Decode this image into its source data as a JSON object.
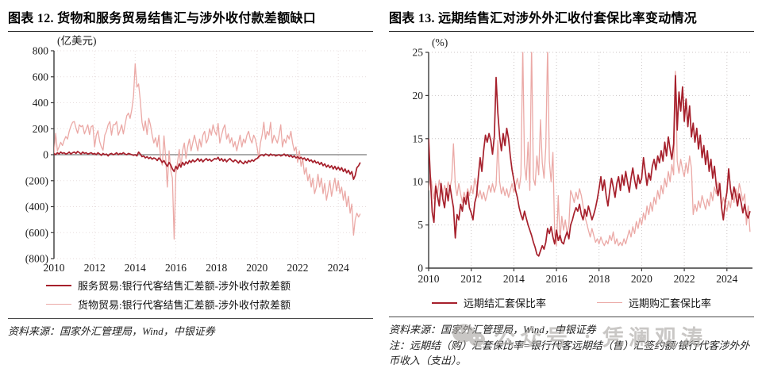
{
  "colors": {
    "dark_red": "#A6202C",
    "light_pink": "#EBA9A6",
    "neg_label_red": "#E8322E",
    "axis": "#3a3a3a",
    "zero_line": "#8f8f8f",
    "watermark_gray": "#a9a6a2"
  },
  "panels": [
    {
      "title": "图表 12. 货物和服务贸易结售汇与涉外收付款差额缺口",
      "legend": [
        {
          "label": "服务贸易:银行代客结售汇差额-涉外收付款差额",
          "color_key": "dark_red"
        },
        {
          "label": "货物贸易:银行代客结售汇差额-涉外收付款差额",
          "color_key": "light_pink"
        }
      ],
      "source": "资料来源：国家外汇管理局，Wind，中银证券"
    },
    {
      "title": "图表 13. 远期结售汇对涉外外汇收付套保比率变动情况",
      "legend": [
        {
          "label": "远期结汇套保比率",
          "color_key": "dark_red"
        },
        {
          "label": "远期购汇套保比率",
          "color_key": "light_pink"
        }
      ],
      "source": "资料来源：国家外汇管理局，Wind，中银证券",
      "note": "注：远期结（购）汇套保比率=银行代客远期结（售）汇签约额/银行代客涉外外币收入（支出）。"
    }
  ],
  "watermark": {
    "text_left": "公众号",
    "separator": "・",
    "text_right": "凭澜观涛"
  },
  "chart_data": [
    {
      "type": "line",
      "title": "货物和服务贸易结售汇与涉外收付款差额缺口",
      "xlabel": "",
      "ylabel": "(亿美元)",
      "ylim": [
        -800,
        800
      ],
      "yticks": [
        800,
        600,
        400,
        200,
        0,
        -200,
        -400,
        -600,
        -800
      ],
      "ytick_labels": [
        "800",
        "600",
        "400",
        "200",
        "0",
        "(200)",
        "(400)",
        "(600)",
        "(800)"
      ],
      "xlim": [
        2010,
        2025.4
      ],
      "xticks": [
        2010,
        2012,
        2014,
        2016,
        2018,
        2020,
        2022,
        2024
      ],
      "x_start": 2010,
      "x_step": 0.083333,
      "grid": "dotted",
      "grid_color": "#e7dddd",
      "legend_position": "bottom",
      "series": [
        {
          "name": "货物贸易:银行代客结售汇差额-涉外收付款差额",
          "color_key": "light_pink",
          "values": [
            5,
            165,
            30,
            60,
            95,
            70,
            110,
            140,
            120,
            180,
            220,
            250,
            255,
            205,
            165,
            230,
            215,
            225,
            160,
            195,
            230,
            155,
            215,
            225,
            60,
            150,
            185,
            100,
            60,
            35,
            150,
            180,
            230,
            255,
            150,
            230,
            230,
            255,
            150,
            185,
            230,
            160,
            230,
            300,
            320,
            280,
            350,
            450,
            700,
            520,
            545,
            420,
            250,
            185,
            260,
            155,
            280,
            230,
            150,
            90,
            130,
            60,
            150,
            -30,
            -80,
            145,
            -20,
            -250,
            30,
            -120,
            -180,
            -650,
            -150,
            -60,
            40,
            -100,
            30,
            90,
            -30,
            60,
            120,
            30,
            90,
            150,
            90,
            30,
            120,
            60,
            150,
            180,
            90,
            120,
            200,
            150,
            230,
            180,
            150,
            240,
            90,
            150,
            200,
            230,
            120,
            160,
            90,
            130,
            60,
            100,
            30,
            90,
            150,
            60,
            120,
            90,
            150,
            180,
            120,
            90,
            150,
            120,
            60,
            -30,
            90,
            150,
            250,
            120,
            180,
            150,
            250,
            90,
            150,
            120,
            90,
            150,
            230,
            60,
            120,
            90,
            150,
            120,
            180,
            90,
            30,
            60,
            -60,
            30,
            -90,
            -30,
            -150,
            -100,
            -200,
            -150,
            -250,
            -180,
            -300,
            -250,
            -150,
            -250,
            -180,
            -300,
            -220,
            -350,
            -280,
            -200,
            -320,
            -250,
            -180,
            -280,
            -200,
            -300,
            -250,
            -350,
            -280,
            -400,
            -320,
            -450,
            -380,
            -620,
            -500,
            -450,
            -480,
            -455
          ]
        },
        {
          "name": "服务贸易:银行代客结售汇差额-涉外收付款差额",
          "color_key": "dark_red",
          "values": [
            10,
            0,
            15,
            5,
            20,
            10,
            15,
            5,
            10,
            20,
            5,
            15,
            20,
            10,
            25,
            15,
            5,
            20,
            10,
            15,
            5,
            10,
            15,
            5,
            10,
            0,
            15,
            5,
            -5,
            10,
            0,
            5,
            -10,
            5,
            10,
            0,
            5,
            15,
            0,
            10,
            5,
            15,
            5,
            0,
            10,
            5,
            0,
            -5,
            0,
            -10,
            20,
            5,
            -15,
            -10,
            -25,
            -15,
            -30,
            -20,
            -35,
            -25,
            -30,
            -45,
            -25,
            -40,
            -60,
            -45,
            -70,
            -90,
            -60,
            -80,
            -110,
            -130,
            -90,
            -110,
            -70,
            -95,
            -60,
            -80,
            -55,
            -70,
            -45,
            -60,
            -40,
            -55,
            -45,
            -30,
            -50,
            -35,
            -55,
            -40,
            -30,
            -45,
            -35,
            -50,
            -40,
            -30,
            -35,
            -20,
            -45,
            -30,
            -50,
            -35,
            -55,
            -40,
            -30,
            -45,
            -55,
            -40,
            -50,
            -65,
            -45,
            -60,
            -70,
            -50,
            -65,
            -45,
            -55,
            -40,
            -50,
            -35,
            -30,
            -15,
            -5,
            0,
            -10,
            5,
            0,
            -10,
            5,
            -5,
            0,
            -10,
            -5,
            0,
            -10,
            -5,
            5,
            -10,
            0,
            -15,
            -5,
            -20,
            -10,
            -25,
            -15,
            -30,
            -20,
            -35,
            -25,
            -45,
            -30,
            -50,
            -40,
            -60,
            -45,
            -65,
            -55,
            -75,
            -60,
            -85,
            -70,
            -95,
            -80,
            -100,
            -85,
            -110,
            -90,
            -115,
            -95,
            -120,
            -100,
            -130,
            -110,
            -140,
            -120,
            -150,
            -130,
            -190,
            -160,
            -100,
            -85,
            -60
          ]
        }
      ]
    },
    {
      "type": "line",
      "title": "远期结售汇对涉外外汇收付套保比率变动情况",
      "xlabel": "",
      "ylabel": "(%)",
      "ylim": [
        0,
        25
      ],
      "yticks": [
        25,
        20,
        15,
        10,
        5,
        0
      ],
      "ytick_labels": [
        "25",
        "20",
        "15",
        "10",
        "5",
        "0"
      ],
      "xlim": [
        2010,
        2025.2
      ],
      "xticks": [
        2010,
        2012,
        2014,
        2016,
        2018,
        2020,
        2022,
        2024
      ],
      "x_start": 2010,
      "x_step": 0.083333,
      "grid": "dotted",
      "grid_color": "#ccc6c6",
      "legend_position": "bottom",
      "series": [
        {
          "name": "远期购汇套保比率",
          "color_key": "light_pink",
          "values": [
            9.0,
            10.8,
            9.4,
            8.0,
            9.8,
            8.6,
            10.2,
            9.0,
            8.2,
            9.6,
            8.8,
            10.0,
            9.2,
            10.4,
            14.4,
            9.6,
            8.4,
            9.8,
            8.6,
            7.6,
            8.8,
            8.0,
            9.2,
            8.4,
            9.6,
            8.6,
            10.4,
            9.4,
            8.2,
            9.0,
            8.0,
            8.8,
            7.8,
            8.6,
            9.6,
            8.8,
            9.8,
            8.8,
            9.6,
            14.8,
            10.0,
            8.6,
            9.4,
            8.4,
            9.2,
            8.2,
            9.0,
            9.8,
            8.8,
            9.6,
            10.4,
            9.2,
            10.8,
            25.5,
            12.0,
            10.2,
            14.6,
            9.0,
            25.8,
            10.4,
            9.6,
            13.0,
            10.8,
            17.2,
            12.2,
            10.4,
            14.0,
            25.6,
            12.4,
            10.0,
            13.4,
            4.0,
            2.6,
            8.4,
            3.2,
            6.0,
            4.4,
            5.6,
            4.0,
            5.0,
            9.0,
            8.4,
            7.6,
            8.8,
            8.0,
            9.2,
            8.4,
            7.2,
            6.0,
            5.2,
            4.4,
            3.6,
            4.6,
            3.8,
            3.0,
            3.4,
            2.8,
            3.6,
            3.0,
            2.6,
            3.2,
            2.8,
            3.8,
            3.2,
            4.2,
            2.8,
            3.4,
            2.6,
            3.0,
            2.6,
            3.4,
            2.8,
            3.6,
            4.4,
            3.6,
            4.8,
            4.0,
            5.4,
            4.6,
            5.8,
            5.0,
            6.4,
            5.6,
            7.2,
            6.2,
            7.6,
            6.6,
            8.2,
            7.4,
            9.0,
            8.0,
            9.6,
            8.6,
            10.4,
            9.4,
            11.2,
            10.0,
            12.0,
            10.8,
            22.8,
            12.4,
            11.0,
            12.6,
            11.4,
            10.6,
            12.2,
            11.0,
            13.0,
            11.6,
            6.2,
            7.4,
            6.6,
            7.8,
            7.0,
            8.4,
            7.6,
            6.8,
            8.0,
            7.2,
            8.8,
            7.8,
            9.4,
            8.6,
            10.0,
            9.0,
            7.0,
            8.2,
            7.4,
            6.6,
            7.8,
            7.0,
            8.6,
            7.6,
            9.2,
            8.2,
            9.8,
            8.8,
            7.8,
            8.6,
            5.0,
            7.2,
            4.2
          ]
        },
        {
          "name": "远期结汇套保比率",
          "color_key": "dark_red",
          "values": [
            15.0,
            10.5,
            6.5,
            5.3,
            9.5,
            8.3,
            7.2,
            9.8,
            8.0,
            7.0,
            9.2,
            7.8,
            9.6,
            8.2,
            7.0,
            3.5,
            6.2,
            5.6,
            7.4,
            6.6,
            8.2,
            7.4,
            8.8,
            7.0,
            6.4,
            5.6,
            7.6,
            8.4,
            10.6,
            12.8,
            11.2,
            13.6,
            15.4,
            14.6,
            15.6,
            14.8,
            13.2,
            15.3,
            22.1,
            18.0,
            15.2,
            13.6,
            15.6,
            14.2,
            16.2,
            15.0,
            13.0,
            11.4,
            10.2,
            9.0,
            8.2,
            7.0,
            6.2,
            5.6,
            6.6,
            5.8,
            5.0,
            4.4,
            3.8,
            3.0,
            2.4,
            1.6,
            1.4,
            2.0,
            2.6,
            2.2,
            3.0,
            4.6,
            4.0,
            4.8,
            3.6,
            2.8,
            4.4,
            3.2,
            3.8,
            3.0,
            2.8,
            3.6,
            4.2,
            3.4,
            5.0,
            5.6,
            6.4,
            7.0,
            6.6,
            7.4,
            6.2,
            5.6,
            6.8,
            6.0,
            7.2,
            6.4,
            5.6,
            6.2,
            7.0,
            8.0,
            9.2,
            10.6,
            9.0,
            10.2,
            8.4,
            7.2,
            9.0,
            10.4,
            9.4,
            8.2,
            9.8,
            10.6,
            9.0,
            10.8,
            9.6,
            11.2,
            10.0,
            8.8,
            10.4,
            11.6,
            10.2,
            9.2,
            10.8,
            9.8,
            10.4,
            12.8,
            11.2,
            9.6,
            11.0,
            10.2,
            11.8,
            12.6,
            11.4,
            13.0,
            12.2,
            13.6,
            12.4,
            14.6,
            13.0,
            15.2,
            13.8,
            12.6,
            14.4,
            22.3,
            16.0,
            20.4,
            18.2,
            21.0,
            17.0,
            19.6,
            16.4,
            18.8,
            15.2,
            16.8,
            14.6,
            16.2,
            13.8,
            15.4,
            12.8,
            14.2,
            12.0,
            13.6,
            11.2,
            12.6,
            10.4,
            11.8,
            9.6,
            8.4,
            9.8,
            7.0,
            5.6,
            7.6,
            8.8,
            11.5,
            9.2,
            8.0,
            9.4,
            8.4,
            7.2,
            8.6,
            7.6,
            6.4,
            7.4,
            6.2,
            5.8,
            6.6
          ]
        }
      ]
    }
  ]
}
